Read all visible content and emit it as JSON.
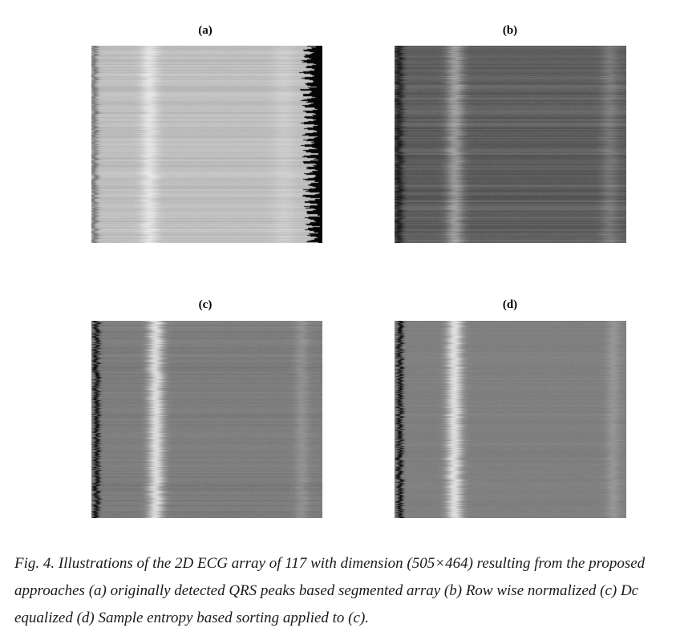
{
  "figure": {
    "panels": [
      {
        "id": "a",
        "label": "(a)"
      },
      {
        "id": "b",
        "label": "(b)"
      },
      {
        "id": "c",
        "label": "(c)"
      },
      {
        "id": "d",
        "label": "(d)"
      }
    ],
    "caption": "Fig. 4.  Illustrations of the 2D ECG array of 117 with dimension (505×464) resulting from the proposed approaches (a) originally  detected QRS peaks based segmented array (b) Row wise normalized (c) Dc equalized (d) Sample entropy based sorting applied to (c)."
  }
}
